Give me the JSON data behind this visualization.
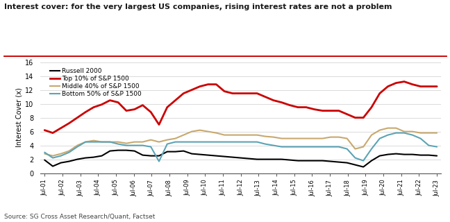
{
  "title": "Interest cover: for the very largest US companies, rising interest rates are not a problem",
  "ylabel": "Interest Cover (x)",
  "source": "Source: SG Cross Asset Research/Quant, Factset",
  "title_color": "#1a1a1a",
  "title_red_line": "#cc0000",
  "background_color": "#ffffff",
  "ylim": [
    0,
    16
  ],
  "yticks": [
    0,
    2,
    4,
    6,
    8,
    10,
    12,
    14,
    16
  ],
  "series": {
    "russell2000": {
      "label": "Russell 2000",
      "color": "#000000",
      "linewidth": 1.5,
      "data": [
        1.9,
        1.0,
        1.5,
        1.7,
        2.0,
        2.2,
        2.3,
        2.5,
        3.2,
        3.3,
        3.3,
        3.2,
        2.6,
        2.5,
        2.5,
        3.1,
        3.1,
        3.2,
        2.8,
        2.7,
        2.6,
        2.5,
        2.4,
        2.3,
        2.2,
        2.1,
        2.0,
        2.0,
        2.0,
        2.0,
        1.9,
        1.8,
        1.8,
        1.8,
        1.8,
        1.7,
        1.6,
        1.5,
        1.2,
        0.9,
        1.8,
        2.5,
        2.7,
        2.8,
        2.7,
        2.7,
        2.6,
        2.6,
        2.5
      ]
    },
    "top10": {
      "label": "Top 10% of S&P 1500",
      "color": "#cc0000",
      "linewidth": 2.0,
      "data": [
        6.2,
        5.8,
        6.5,
        7.2,
        8.0,
        8.8,
        9.5,
        9.9,
        10.5,
        10.2,
        9.0,
        9.2,
        9.8,
        8.8,
        7.0,
        9.5,
        10.5,
        11.5,
        12.0,
        12.5,
        12.8,
        12.8,
        11.8,
        11.5,
        11.5,
        11.5,
        11.5,
        11.0,
        10.5,
        10.2,
        9.8,
        9.5,
        9.5,
        9.2,
        9.0,
        9.0,
        9.0,
        8.5,
        8.0,
        8.0,
        9.5,
        11.5,
        12.5,
        13.0,
        13.2,
        12.8,
        12.5,
        12.5,
        12.5
      ]
    },
    "middle40": {
      "label": "Middle 40% of S&P 1500",
      "color": "#c8a86e",
      "linewidth": 1.5,
      "data": [
        2.8,
        2.5,
        2.8,
        3.2,
        4.0,
        4.5,
        4.7,
        4.5,
        4.5,
        4.5,
        4.3,
        4.5,
        4.5,
        4.8,
        4.5,
        4.8,
        5.0,
        5.5,
        6.0,
        6.2,
        6.0,
        5.8,
        5.5,
        5.5,
        5.5,
        5.5,
        5.5,
        5.3,
        5.2,
        5.0,
        5.0,
        5.0,
        5.0,
        5.0,
        5.0,
        5.2,
        5.2,
        5.0,
        3.5,
        3.8,
        5.5,
        6.2,
        6.5,
        6.5,
        6.0,
        6.0,
        5.8,
        5.8,
        5.8
      ]
    },
    "bottom50": {
      "label": "Bottom 50% of S&P 1500",
      "color": "#5ba3b5",
      "linewidth": 1.5,
      "data": [
        3.0,
        2.2,
        2.5,
        3.0,
        3.8,
        4.5,
        4.5,
        4.5,
        4.5,
        4.2,
        4.0,
        4.0,
        4.0,
        3.8,
        1.7,
        4.2,
        4.5,
        4.5,
        4.5,
        4.5,
        4.5,
        4.5,
        4.5,
        4.5,
        4.5,
        4.5,
        4.5,
        4.2,
        4.0,
        3.8,
        3.8,
        3.8,
        3.8,
        3.8,
        3.8,
        3.8,
        3.8,
        3.5,
        2.2,
        1.8,
        3.5,
        5.0,
        5.5,
        5.8,
        5.8,
        5.5,
        5.0,
        4.0,
        3.8
      ]
    }
  },
  "xtick_labels": [
    "Jul-01",
    "Jul-02",
    "Jul-03",
    "Jul-04",
    "Jul-05",
    "Jul-06",
    "Jul-07",
    "Jul-08",
    "Jul-09",
    "Jul-10",
    "Jul-11",
    "Jul-12",
    "Jul-13",
    "Jul-14",
    "Jul-15",
    "Jul-16",
    "Jul-17",
    "Jul-18",
    "Jul-19",
    "Jul-20",
    "Jul-21",
    "Jul-22",
    "Jul-23"
  ]
}
